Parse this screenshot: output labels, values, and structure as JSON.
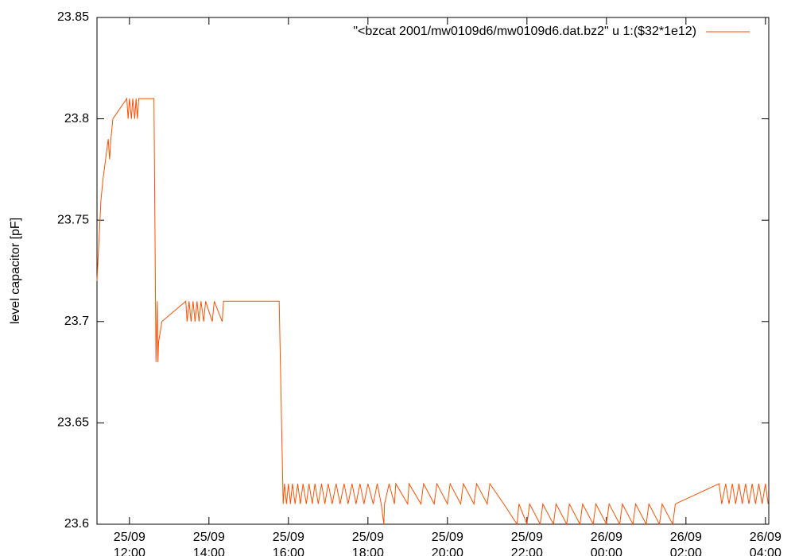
{
  "chart_data": {
    "type": "line",
    "ylabel": "level capacitor [pF]",
    "ylim": [
      23.6,
      23.85
    ],
    "yticks": [
      23.6,
      23.65,
      23.7,
      23.75,
      23.8,
      23.85
    ],
    "xlim": [
      "25/09 11:11",
      "26/09 04:05"
    ],
    "xticks": [
      {
        "value": "25/09 12:00",
        "label": "25/09\n12:00"
      },
      {
        "value": "25/09 14:00",
        "label": "25/09\n14:00"
      },
      {
        "value": "25/09 16:00",
        "label": "25/09\n16:00"
      },
      {
        "value": "25/09 18:00",
        "label": "25/09\n18:00"
      },
      {
        "value": "25/09 20:00",
        "label": "25/09\n20:00"
      },
      {
        "value": "25/09 22:00",
        "label": "25/09\n22:00"
      },
      {
        "value": "26/09 00:00",
        "label": "26/09\n00:00"
      },
      {
        "value": "26/09 02:00",
        "label": "26/09\n02:00"
      },
      {
        "value": "26/09 04:00",
        "label": "26/09\n04:00"
      }
    ],
    "legend": "top right",
    "x": [
      "25/09 11:11",
      "25/09 11:14",
      "25/09 11:17",
      "25/09 11:20",
      "25/09 11:24",
      "25/09 11:28",
      "25/09 11:30",
      "25/09 11:32",
      "25/09 11:35",
      "25/09 11:56",
      "25/09 11:58",
      "25/09 12:00",
      "25/09 12:03",
      "25/09 12:05",
      "25/09 12:08",
      "25/09 12:10",
      "25/09 12:12",
      "25/09 12:14",
      "25/09 12:37",
      "25/09 12:40",
      "25/09 12:42",
      "25/09 12:43",
      "25/09 12:44",
      "25/09 12:49",
      "25/09 13:25",
      "25/09 13:27",
      "25/09 13:30",
      "25/09 13:33",
      "25/09 13:36",
      "25/09 13:39",
      "25/09 13:42",
      "25/09 13:45",
      "25/09 13:48",
      "25/09 13:52",
      "25/09 13:55",
      "25/09 14:05",
      "25/09 14:08",
      "25/09 14:20",
      "25/09 14:22",
      "25/09 15:46",
      "25/09 15:52",
      "25/09 15:54",
      "25/09 15:57",
      "25/09 16:00",
      "25/09 16:03",
      "25/09 16:06",
      "25/09 16:10",
      "25/09 16:14",
      "25/09 16:18",
      "25/09 16:22",
      "25/09 16:27",
      "25/09 16:31",
      "25/09 16:36",
      "25/09 16:40",
      "25/09 16:45",
      "25/09 16:50",
      "25/09 16:55",
      "25/09 17:00",
      "25/09 17:06",
      "25/09 17:12",
      "25/09 17:18",
      "25/09 17:24",
      "25/09 17:30",
      "25/09 17:36",
      "25/09 17:42",
      "25/09 17:48",
      "25/09 17:54",
      "25/09 18:00",
      "25/09 18:08",
      "25/09 18:14",
      "25/09 18:20",
      "25/09 18:24",
      "25/09 18:25",
      "25/09 18:32",
      "25/09 18:40",
      "25/09 18:42",
      "25/09 19:00",
      "25/09 19:02",
      "25/09 19:20",
      "25/09 19:24",
      "25/09 19:40",
      "25/09 19:44",
      "25/09 20:00",
      "25/09 20:04",
      "25/09 20:20",
      "25/09 20:24",
      "25/09 20:40",
      "25/09 20:44",
      "25/09 21:00",
      "25/09 21:04",
      "25/09 21:25",
      "25/09 21:45",
      "25/09 21:48",
      "25/09 22:00",
      "25/09 22:04",
      "25/09 22:20",
      "25/09 22:24",
      "25/09 22:40",
      "25/09 22:44",
      "25/09 23:00",
      "25/09 23:04",
      "25/09 23:20",
      "25/09 23:24",
      "25/09 23:40",
      "25/09 23:44",
      "26/09 00:00",
      "26/09 00:04",
      "26/09 00:20",
      "26/09 00:24",
      "26/09 00:40",
      "26/09 00:44",
      "26/09 01:00",
      "26/09 01:04",
      "26/09 01:20",
      "26/09 01:24",
      "26/09 01:40",
      "26/09 01:44",
      "26/09 02:50",
      "26/09 02:54",
      "26/09 03:00",
      "26/09 03:05",
      "26/09 03:10",
      "26/09 03:15",
      "26/09 03:20",
      "26/09 03:25",
      "26/09 03:30",
      "26/09 03:35",
      "26/09 03:40",
      "26/09 03:45",
      "26/09 03:50",
      "26/09 03:55",
      "26/09 04:00",
      "26/09 04:04"
    ],
    "series": [
      {
        "name": "\"<bzcat 2001/mw0109d6/mw0109d6.dat.bz2\" u 1:($32*1e12)",
        "color": "#ff5000",
        "values": [
          23.72,
          23.74,
          23.76,
          23.77,
          23.78,
          23.79,
          23.78,
          23.79,
          23.8,
          23.81,
          23.8,
          23.81,
          23.8,
          23.81,
          23.8,
          23.81,
          23.8,
          23.81,
          23.81,
          23.68,
          23.71,
          23.68,
          23.69,
          23.7,
          23.71,
          23.7,
          23.71,
          23.7,
          23.71,
          23.7,
          23.71,
          23.7,
          23.71,
          23.7,
          23.71,
          23.7,
          23.71,
          23.7,
          23.71,
          23.71,
          23.61,
          23.62,
          23.61,
          23.62,
          23.61,
          23.62,
          23.61,
          23.62,
          23.61,
          23.62,
          23.61,
          23.62,
          23.61,
          23.62,
          23.61,
          23.62,
          23.61,
          23.62,
          23.61,
          23.62,
          23.61,
          23.62,
          23.61,
          23.62,
          23.61,
          23.62,
          23.61,
          23.62,
          23.61,
          23.62,
          23.61,
          23.6,
          23.61,
          23.62,
          23.61,
          23.62,
          23.61,
          23.62,
          23.61,
          23.62,
          23.61,
          23.62,
          23.61,
          23.62,
          23.61,
          23.62,
          23.61,
          23.62,
          23.61,
          23.62,
          23.61,
          23.6,
          23.61,
          23.6,
          23.61,
          23.6,
          23.61,
          23.6,
          23.61,
          23.6,
          23.61,
          23.6,
          23.61,
          23.6,
          23.61,
          23.6,
          23.61,
          23.6,
          23.61,
          23.6,
          23.61,
          23.6,
          23.61,
          23.6,
          23.61,
          23.6,
          23.61,
          23.62,
          23.61,
          23.62,
          23.61,
          23.62,
          23.61,
          23.62,
          23.61,
          23.62,
          23.61,
          23.62,
          23.61,
          23.62,
          23.61,
          23.62,
          23.61
        ]
      }
    ]
  }
}
